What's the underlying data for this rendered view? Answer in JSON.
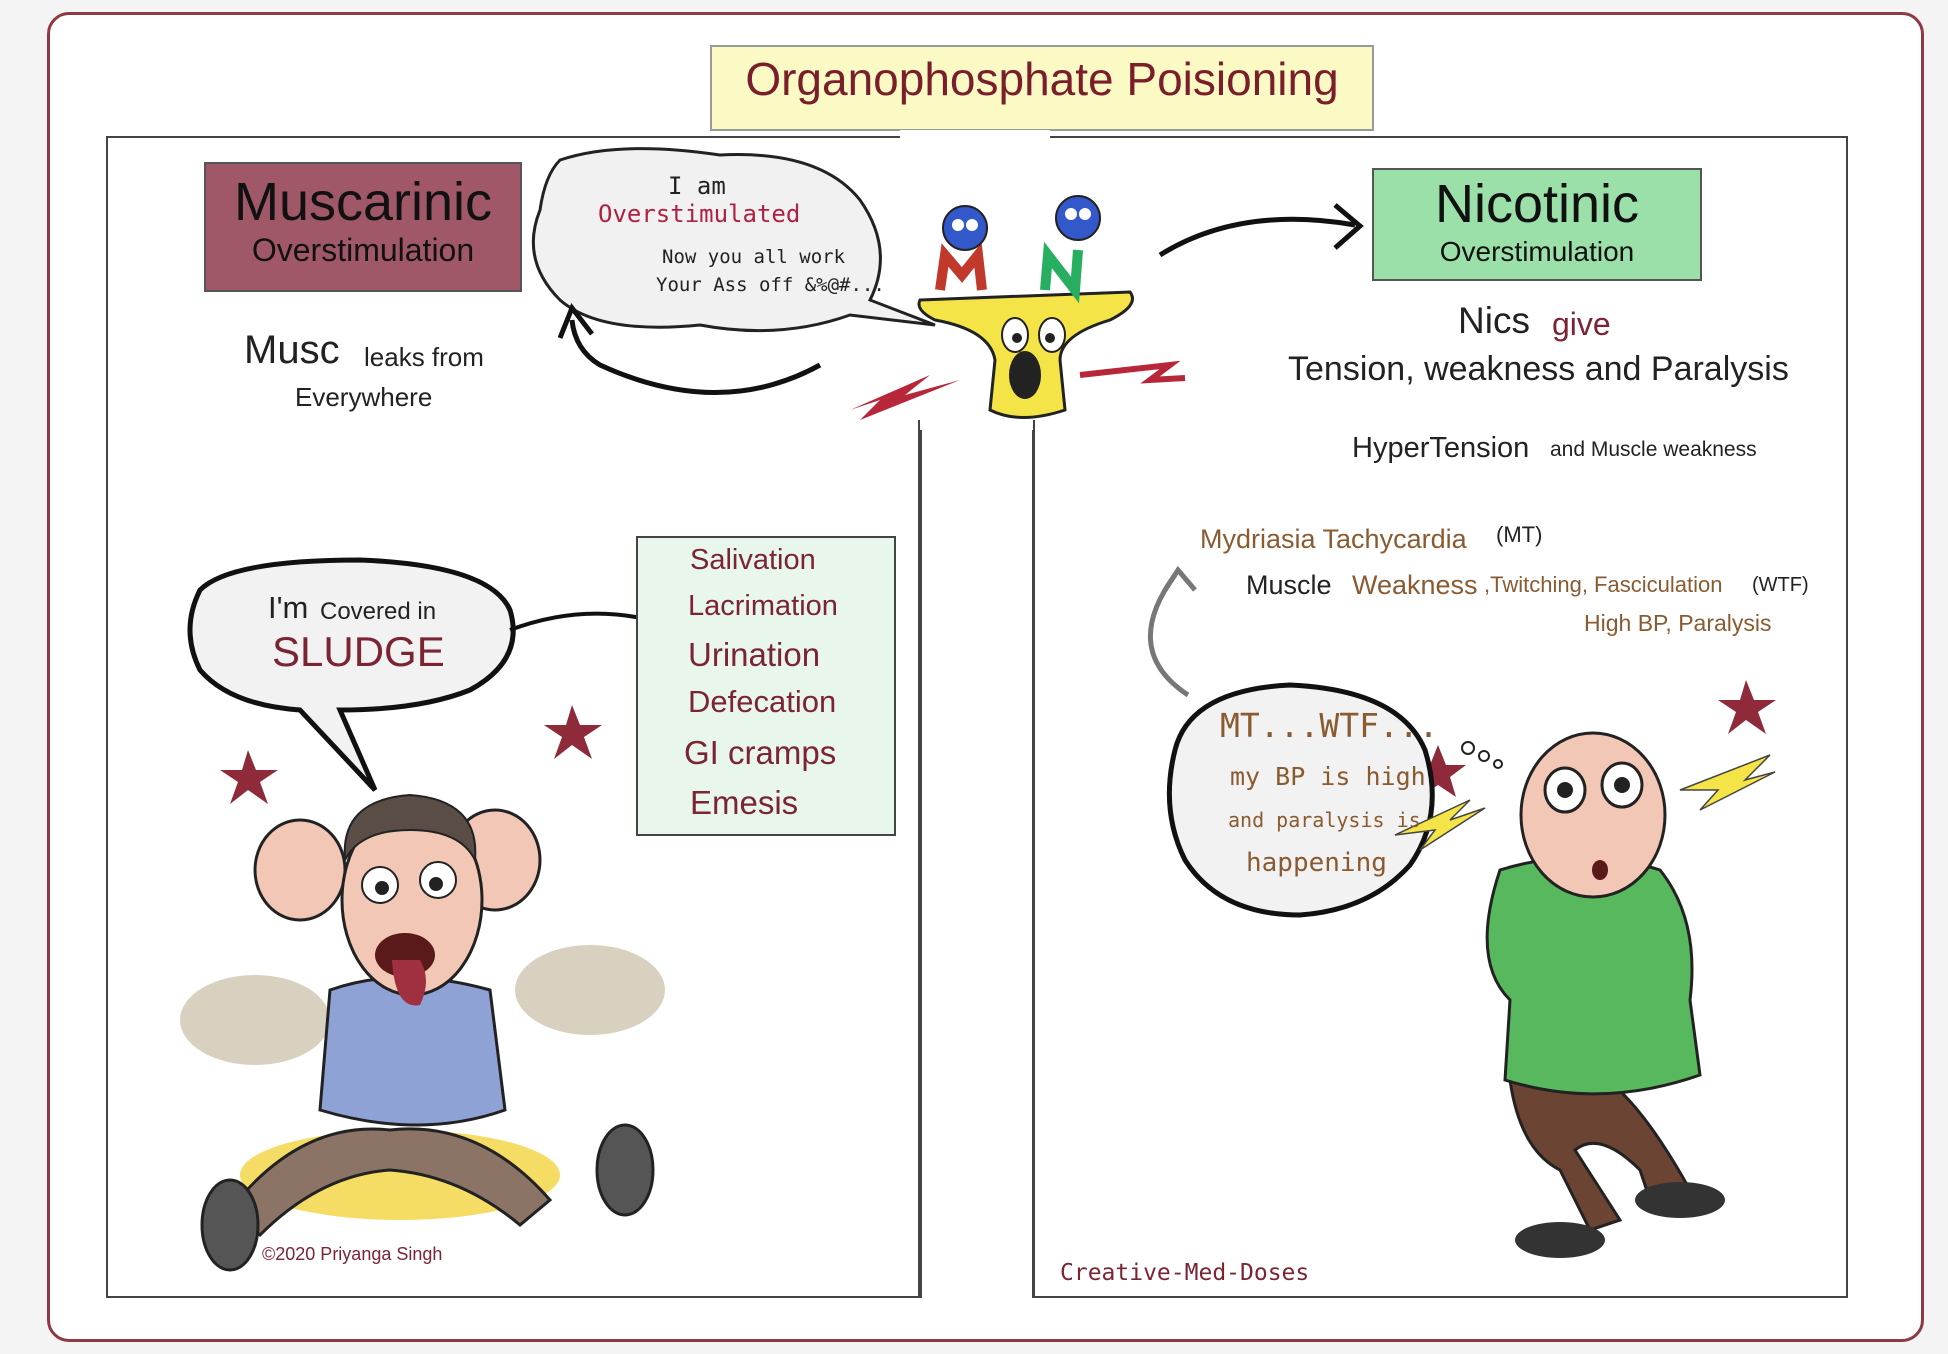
{
  "title": "Organophosphate Poisioning",
  "colors": {
    "frame": "#8e3a45",
    "muscarinic_box": "#a05868",
    "nicotinic_box": "#9be0a8",
    "title_box": "#fbfac4",
    "accent_text": "#7a2434"
  },
  "muscarinic": {
    "heading": "Muscarinic",
    "subheading": "Overstimulation",
    "note_big": "Musc",
    "note_rest": "leaks from",
    "note_line2": "Everywhere"
  },
  "nicotinic": {
    "heading": "Nicotinic",
    "subheading": "Overstimulation",
    "nics": "Nics",
    "give": "give",
    "tension": "Tension, weakness and Paralysis",
    "hypertension": "HyperTension",
    "muscle_weakness": "and Muscle weakness"
  },
  "receptor_bubble": {
    "line1": "I am",
    "line2": "Overstimulated",
    "line3": "Now you all work",
    "line4": "Your Ass off &%@#..."
  },
  "receptor_letters": {
    "m": "M",
    "n": "N"
  },
  "sludge_bubble": {
    "prefix_big": "I'm",
    "prefix_rest": "Covered in",
    "word": "SLUDGE"
  },
  "sludge_list": [
    "Salivation",
    "Lacrimation",
    "Urination",
    "Defecation",
    "GI cramps",
    "Emesis"
  ],
  "mtwtf": {
    "line1a": "Mydriasia Tachycardia",
    "line1b": "(MT)",
    "line2a": "Muscle",
    "line2b": "Weakness",
    "line2c": ",Twitching, Fasciculation",
    "line2d": "(WTF)",
    "line3": "High BP, Paralysis"
  },
  "thought_bubble": {
    "line1": "MT...WTF...",
    "line2": "my BP is high",
    "line3": "and paralysis is",
    "line4": "happening"
  },
  "copyright": "©2020 Priyanga Singh",
  "brand": "Creative-Med-Doses"
}
